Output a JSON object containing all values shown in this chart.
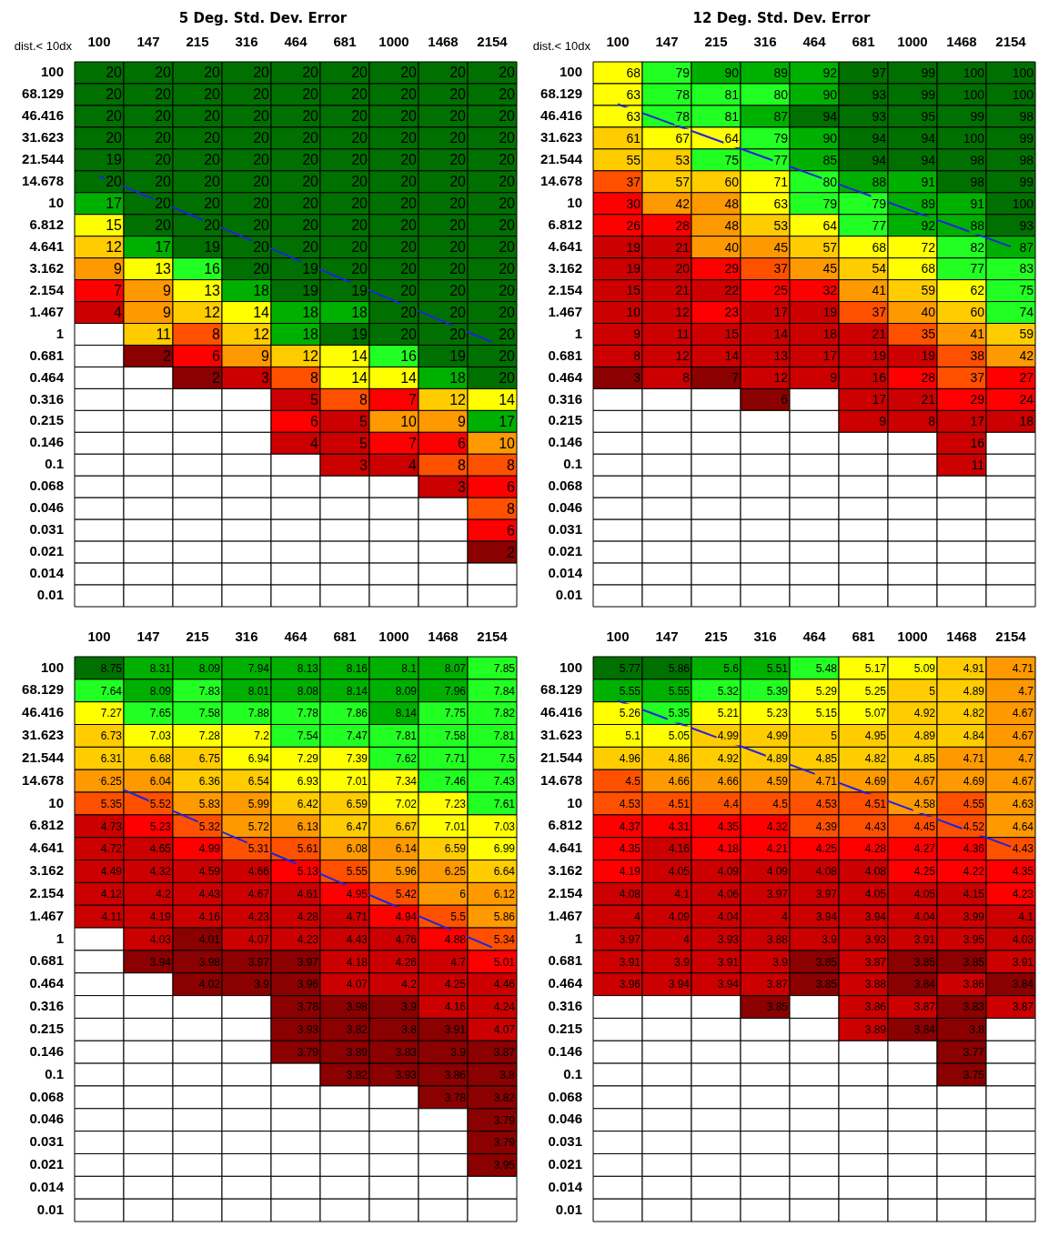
{
  "chart_data": [
    {
      "type": "heatmap",
      "title": "5 Deg. Std. Dev. Error",
      "ylabel": "dist.< 10dx",
      "data_labels": true,
      "categories": [
        "100",
        "147",
        "215",
        "316",
        "464",
        "681",
        "1000",
        "1468",
        "2154"
      ],
      "y_categories": [
        "100",
        "68.129",
        "46.416",
        "31.623",
        "21.544",
        "14.678",
        "10",
        "6.812",
        "4.641",
        "3.162",
        "2.154",
        "1.467",
        "1",
        "0.681",
        "0.464",
        "0.316",
        "0.215",
        "0.146",
        "0.1",
        "0.068",
        "0.046",
        "0.031",
        "0.021",
        "0.014",
        "0.01"
      ],
      "cells": [
        [
          20,
          20,
          20,
          20,
          20,
          20,
          20,
          20,
          20
        ],
        [
          20,
          20,
          20,
          20,
          20,
          20,
          20,
          20,
          20
        ],
        [
          20,
          20,
          20,
          20,
          20,
          20,
          20,
          20,
          20
        ],
        [
          20,
          20,
          20,
          20,
          20,
          20,
          20,
          20,
          20
        ],
        [
          19,
          20,
          20,
          20,
          20,
          20,
          20,
          20,
          20
        ],
        [
          20,
          20,
          20,
          20,
          20,
          20,
          20,
          20,
          20
        ],
        [
          17,
          20,
          20,
          20,
          20,
          20,
          20,
          20,
          20
        ],
        [
          15,
          20,
          20,
          20,
          20,
          20,
          20,
          20,
          20
        ],
        [
          12,
          17,
          19,
          20,
          20,
          20,
          20,
          20,
          20
        ],
        [
          9,
          13,
          16,
          20,
          19,
          20,
          20,
          20,
          20
        ],
        [
          7,
          9,
          13,
          18,
          19,
          19,
          20,
          20,
          20
        ],
        [
          4,
          9,
          12,
          14,
          18,
          18,
          20,
          20,
          20
        ],
        [
          null,
          11,
          8,
          12,
          18,
          19,
          20,
          20,
          20
        ],
        [
          null,
          2,
          6,
          9,
          12,
          14,
          16,
          19,
          20
        ],
        [
          null,
          null,
          2,
          3,
          8,
          14,
          14,
          18,
          20
        ],
        [
          null,
          null,
          null,
          null,
          5,
          8,
          7,
          12,
          14
        ],
        [
          null,
          null,
          null,
          null,
          6,
          5,
          10,
          9,
          17
        ],
        [
          null,
          null,
          null,
          null,
          4,
          5,
          7,
          6,
          10
        ],
        [
          null,
          null,
          null,
          null,
          null,
          3,
          4,
          8,
          8
        ],
        [
          null,
          null,
          null,
          null,
          null,
          null,
          null,
          3,
          6
        ],
        [
          null,
          null,
          null,
          null,
          null,
          null,
          null,
          null,
          8
        ],
        [
          null,
          null,
          null,
          null,
          null,
          null,
          null,
          null,
          6
        ],
        [
          null,
          null,
          null,
          null,
          null,
          null,
          null,
          null,
          2
        ],
        [
          null,
          null,
          null,
          null,
          null,
          null,
          null,
          null,
          null
        ],
        [
          null,
          null,
          null,
          null,
          null,
          null,
          null,
          null,
          null
        ]
      ],
      "series": [
        {
          "type": "line",
          "color": "#2222dd",
          "values": [
            4.74,
            5.69,
            6.65,
            7.6,
            8.55,
            9.5,
            10.46,
            11.41,
            12.36
          ],
          "value_labels": [
            null,
            null,
            null,
            null,
            null,
            null,
            null,
            null,
            null
          ]
        }
      ]
    },
    {
      "type": "heatmap",
      "title": "12 Deg. Std. Dev. Error",
      "ylabel": "dist.< 10dx",
      "data_labels": true,
      "categories": [
        "100",
        "147",
        "215",
        "316",
        "464",
        "681",
        "1000",
        "1468",
        "2154"
      ],
      "y_categories": [
        "100",
        "68.129",
        "46.416",
        "31.623",
        "21.544",
        "14.678",
        "10",
        "6.812",
        "4.641",
        "3.162",
        "2.154",
        "1.467",
        "1",
        "0.681",
        "0.464",
        "0.316",
        "0.215",
        "0.146",
        "0.1",
        "0.068",
        "0.046",
        "0.031",
        "0.021",
        "0.014",
        "0.01"
      ],
      "cells": [
        [
          68,
          79,
          90,
          89,
          92,
          97,
          99,
          100,
          100
        ],
        [
          63,
          78,
          81,
          80,
          90,
          93,
          99,
          100,
          100
        ],
        [
          63,
          78,
          81,
          87,
          94,
          93,
          95,
          99,
          98
        ],
        [
          61,
          67,
          64,
          79,
          90,
          94,
          94,
          100,
          99
        ],
        [
          55,
          53,
          75,
          77,
          85,
          94,
          94,
          98,
          98
        ],
        [
          37,
          57,
          60,
          71,
          80,
          88,
          91,
          98,
          99
        ],
        [
          30,
          42,
          48,
          63,
          79,
          79,
          89,
          91,
          100
        ],
        [
          26,
          28,
          48,
          53,
          64,
          77,
          92,
          88,
          93
        ],
        [
          19,
          21,
          40,
          45,
          57,
          68,
          72,
          82,
          87
        ],
        [
          19,
          20,
          29,
          37,
          45,
          54,
          68,
          77,
          83
        ],
        [
          15,
          21,
          22,
          25,
          32,
          41,
          59,
          62,
          75
        ],
        [
          10,
          12,
          23,
          17,
          19,
          37,
          40,
          60,
          74
        ],
        [
          9,
          11,
          15,
          14,
          18,
          21,
          35,
          41,
          59
        ],
        [
          8,
          12,
          14,
          13,
          17,
          19,
          19,
          38,
          42
        ],
        [
          3,
          8,
          7,
          12,
          9,
          16,
          28,
          37,
          27
        ],
        [
          null,
          null,
          null,
          6,
          null,
          17,
          21,
          29,
          24
        ],
        [
          null,
          null,
          null,
          null,
          null,
          9,
          8,
          17,
          18
        ],
        [
          null,
          null,
          null,
          null,
          null,
          null,
          null,
          16,
          null
        ],
        [
          null,
          null,
          null,
          null,
          null,
          null,
          null,
          11,
          null
        ],
        [
          null,
          null,
          null,
          null,
          null,
          null,
          null,
          null,
          null
        ],
        [
          null,
          null,
          null,
          null,
          null,
          null,
          null,
          null,
          null
        ],
        [
          null,
          null,
          null,
          null,
          null,
          null,
          null,
          null,
          null
        ],
        [
          null,
          null,
          null,
          null,
          null,
          null,
          null,
          null,
          null
        ],
        [
          null,
          null,
          null,
          null,
          null,
          null,
          null,
          null,
          null
        ],
        [
          null,
          null,
          null,
          null,
          null,
          null,
          null,
          null,
          null
        ]
      ],
      "series": [
        {
          "type": "line",
          "color": "#2222dd",
          "values": [
            1.44,
            2.26,
            3.08,
            3.89,
            4.71,
            5.53,
            6.35,
            7.16,
            7.98
          ],
          "value_labels": [
            null,
            null,
            null,
            null,
            null,
            null,
            null,
            null,
            null
          ]
        }
      ]
    },
    {
      "type": "heatmap",
      "data_labels": true,
      "categories": [
        "100",
        "147",
        "215",
        "316",
        "464",
        "681",
        "1000",
        "1468",
        "2154"
      ],
      "y_categories": [
        "100",
        "68.129",
        "46.416",
        "31.623",
        "21.544",
        "14.678",
        "10",
        "6.812",
        "4.641",
        "3.162",
        "2.154",
        "1.467",
        "1",
        "0.681",
        "0.464",
        "0.316",
        "0.215",
        "0.146",
        "0.1",
        "0.068",
        "0.046",
        "0.031",
        "0.021",
        "0.014",
        "0.01"
      ],
      "cells": [
        [
          8.75,
          8.31,
          8.09,
          7.94,
          8.13,
          8.16,
          8.1,
          8.07,
          7.85
        ],
        [
          7.64,
          8.09,
          7.83,
          8.01,
          8.08,
          8.14,
          8.09,
          7.96,
          7.84
        ],
        [
          7.27,
          7.65,
          7.58,
          7.88,
          7.78,
          7.86,
          8.14,
          7.75,
          7.82
        ],
        [
          6.73,
          7.03,
          7.28,
          7.2,
          7.54,
          7.47,
          7.81,
          7.58,
          7.81
        ],
        [
          6.31,
          6.68,
          6.75,
          6.94,
          7.29,
          7.39,
          7.62,
          7.71,
          7.5
        ],
        [
          6.25,
          6.04,
          6.36,
          6.54,
          6.93,
          7.01,
          7.34,
          7.46,
          7.43
        ],
        [
          5.35,
          5.52,
          5.83,
          5.99,
          6.42,
          6.59,
          7.02,
          7.23,
          7.61
        ],
        [
          4.73,
          5.23,
          5.32,
          5.72,
          6.13,
          6.47,
          6.67,
          7.01,
          7.03
        ],
        [
          4.72,
          4.65,
          4.99,
          5.31,
          5.61,
          6.08,
          6.14,
          6.59,
          6.99
        ],
        [
          4.49,
          4.32,
          4.59,
          4.66,
          5.13,
          5.55,
          5.96,
          6.25,
          6.64
        ],
        [
          4.12,
          4.2,
          4.43,
          4.67,
          4.61,
          4.95,
          5.42,
          6,
          6.12
        ],
        [
          4.11,
          4.19,
          4.16,
          4.23,
          4.28,
          4.71,
          4.94,
          5.5,
          5.86
        ],
        [
          null,
          4.03,
          4.01,
          4.07,
          4.23,
          4.43,
          4.76,
          4.88,
          5.34
        ],
        [
          null,
          3.94,
          3.98,
          3.97,
          3.97,
          4.18,
          4.26,
          4.7,
          5.01
        ],
        [
          null,
          null,
          4.02,
          3.9,
          3.96,
          4.07,
          4.2,
          4.25,
          4.46
        ],
        [
          null,
          null,
          null,
          null,
          3.78,
          3.98,
          3.9,
          4.16,
          4.24
        ],
        [
          null,
          null,
          null,
          null,
          3.93,
          3.82,
          3.8,
          3.91,
          4.07
        ],
        [
          null,
          null,
          null,
          null,
          3.79,
          3.89,
          3.83,
          3.9,
          3.87
        ],
        [
          null,
          null,
          null,
          null,
          null,
          3.82,
          3.93,
          3.86,
          3.8
        ],
        [
          null,
          null,
          null,
          null,
          null,
          null,
          null,
          3.78,
          3.82
        ],
        [
          null,
          null,
          null,
          null,
          null,
          null,
          null,
          null,
          3.79
        ],
        [
          null,
          null,
          null,
          null,
          null,
          null,
          null,
          null,
          3.79
        ],
        [
          null,
          null,
          null,
          null,
          null,
          null,
          null,
          null,
          3.95
        ],
        [
          null,
          null,
          null,
          null,
          null,
          null,
          null,
          null,
          null
        ],
        [
          null,
          null,
          null,
          null,
          null,
          null,
          null,
          null,
          null
        ]
      ],
      "series": [
        {
          "type": "line",
          "color": "#2222dd",
          "values": [
            4.93,
            5.86,
            6.79,
            7.72,
            8.65,
            9.58,
            10.51,
            11.44,
            12.37
          ],
          "value_labels": [
            null,
            null,
            null,
            null,
            null,
            null,
            null,
            null,
            null
          ]
        }
      ]
    },
    {
      "type": "heatmap",
      "data_labels": true,
      "categories": [
        "100",
        "147",
        "215",
        "316",
        "464",
        "681",
        "1000",
        "1468",
        "2154"
      ],
      "y_categories": [
        "100",
        "68.129",
        "46.416",
        "31.623",
        "21.544",
        "14.678",
        "10",
        "6.812",
        "4.641",
        "3.162",
        "2.154",
        "1.467",
        "1",
        "0.681",
        "0.464",
        "0.316",
        "0.215",
        "0.146",
        "0.1",
        "0.068",
        "0.046",
        "0.031",
        "0.021",
        "0.014",
        "0.01"
      ],
      "cells": [
        [
          5.77,
          5.86,
          5.6,
          5.51,
          5.48,
          5.17,
          5.09,
          4.91,
          4.71
        ],
        [
          5.55,
          5.55,
          5.32,
          5.39,
          5.29,
          5.25,
          5,
          4.89,
          4.7
        ],
        [
          5.26,
          5.35,
          5.21,
          5.23,
          5.15,
          5.07,
          4.92,
          4.82,
          4.67
        ],
        [
          5.1,
          5.05,
          4.99,
          4.99,
          5,
          4.95,
          4.89,
          4.84,
          4.67
        ],
        [
          4.96,
          4.86,
          4.92,
          4.89,
          4.85,
          4.82,
          4.85,
          4.71,
          4.7
        ],
        [
          4.5,
          4.66,
          4.66,
          4.59,
          4.71,
          4.69,
          4.67,
          4.69,
          4.67
        ],
        [
          4.53,
          4.51,
          4.4,
          4.5,
          4.53,
          4.51,
          4.58,
          4.55,
          4.63
        ],
        [
          4.37,
          4.31,
          4.35,
          4.32,
          4.39,
          4.43,
          4.45,
          4.52,
          4.64
        ],
        [
          4.35,
          4.16,
          4.18,
          4.21,
          4.25,
          4.28,
          4.27,
          4.36,
          4.43
        ],
        [
          4.19,
          4.05,
          4.09,
          4.09,
          4.08,
          4.08,
          4.25,
          4.22,
          4.35
        ],
        [
          4.08,
          4.1,
          4.06,
          3.97,
          3.97,
          4.05,
          4.05,
          4.15,
          4.23
        ],
        [
          4,
          4.09,
          4.04,
          4,
          3.94,
          3.94,
          4.04,
          3.99,
          4.1
        ],
        [
          3.97,
          4,
          3.93,
          3.88,
          3.9,
          3.93,
          3.91,
          3.95,
          4.03
        ],
        [
          3.91,
          3.9,
          3.91,
          3.9,
          3.85,
          3.87,
          3.85,
          3.85,
          3.91
        ],
        [
          3.96,
          3.94,
          3.94,
          3.87,
          3.85,
          3.88,
          3.84,
          3.86,
          3.84
        ],
        [
          null,
          null,
          null,
          3.85,
          null,
          3.86,
          3.87,
          3.83,
          3.87
        ],
        [
          null,
          null,
          null,
          null,
          null,
          3.89,
          3.84,
          3.8,
          null
        ],
        [
          null,
          null,
          null,
          null,
          null,
          null,
          null,
          3.77,
          null
        ],
        [
          null,
          null,
          null,
          null,
          null,
          null,
          null,
          3.75,
          null
        ],
        [
          null,
          null,
          null,
          null,
          null,
          null,
          null,
          null,
          null
        ],
        [
          null,
          null,
          null,
          null,
          null,
          null,
          null,
          null,
          null
        ],
        [
          null,
          null,
          null,
          null,
          null,
          null,
          null,
          null,
          null
        ],
        [
          null,
          null,
          null,
          null,
          null,
          null,
          null,
          null,
          null
        ],
        [
          null,
          null,
          null,
          null,
          null,
          null,
          null,
          null,
          null
        ],
        [
          null,
          null,
          null,
          null,
          null,
          null,
          null,
          null,
          null
        ]
      ],
      "series": [
        {
          "type": "line",
          "color": "#2222dd",
          "values": [
            1.44,
            2.25,
            3.06,
            3.87,
            4.68,
            5.49,
            6.29,
            7.1,
            7.91
          ],
          "value_labels": [
            null,
            null,
            null,
            null,
            null,
            null,
            null,
            null,
            null
          ]
        }
      ]
    }
  ]
}
